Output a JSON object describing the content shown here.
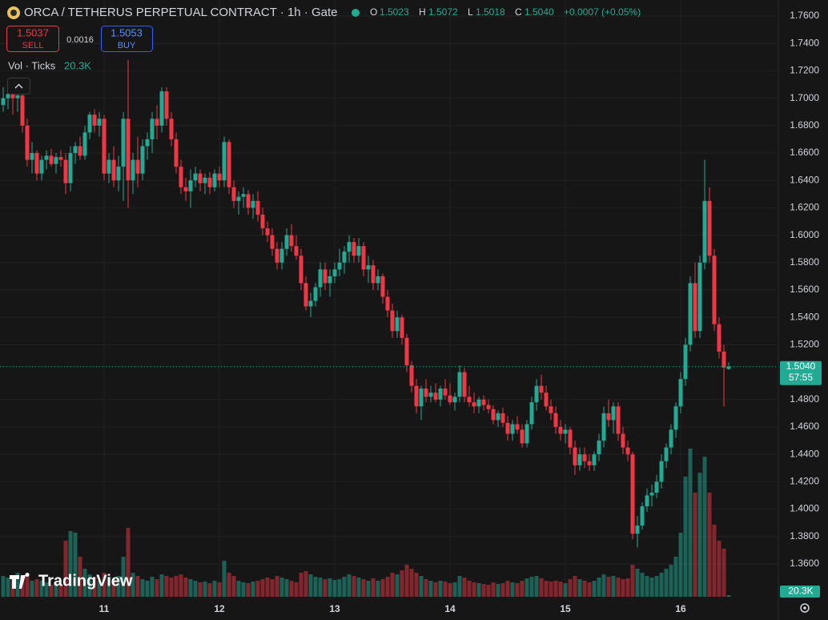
{
  "chart_data": {
    "type": "candlestick",
    "header": {
      "title": "ORCA / TETHERUS PERPETUAL CONTRACT · 1h · Gate",
      "o": "O",
      "o_value": "1.5023",
      "h": "H",
      "h_value": "1.5072",
      "l": "L",
      "l_value": "1.5018",
      "c": "C",
      "c_value": "1.5040",
      "change": "+0.0007 (+0.05%)"
    },
    "trade": {
      "sell_price": "1.5037",
      "sell": "SELL",
      "spread": "0.0016",
      "buy_price": "1.5053",
      "buy": "BUY"
    },
    "volume_title": "Vol · Ticks",
    "volume_label": "20.3K",
    "last_price_label": "1.5040",
    "countdown": "57:55",
    "watermark": "TradingView",
    "up_color": "#22ab94",
    "down_color": "#f23645",
    "ylim": [
      1.336,
      1.76
    ],
    "yticks": [
      {
        "value": 1.76,
        "label": "1.7600"
      },
      {
        "value": 1.74,
        "label": "1.7400"
      },
      {
        "value": 1.72,
        "label": "1.7200"
      },
      {
        "value": 1.7,
        "label": "1.7000"
      },
      {
        "value": 1.68,
        "label": "1.6800"
      },
      {
        "value": 1.66,
        "label": "1.6600"
      },
      {
        "value": 1.64,
        "label": "1.6400"
      },
      {
        "value": 1.62,
        "label": "1.6200"
      },
      {
        "value": 1.6,
        "label": "1.6000"
      },
      {
        "value": 1.58,
        "label": "1.5800"
      },
      {
        "value": 1.56,
        "label": "1.5600"
      },
      {
        "value": 1.54,
        "label": "1.5400"
      },
      {
        "value": 1.52,
        "label": "1.5200"
      },
      {
        "value": 1.48,
        "label": "1.4800"
      },
      {
        "value": 1.46,
        "label": "1.4600"
      },
      {
        "value": 1.44,
        "label": "1.4400"
      },
      {
        "value": 1.42,
        "label": "1.4200"
      },
      {
        "value": 1.4,
        "label": "1.4000"
      },
      {
        "value": 1.38,
        "label": "1.3800"
      },
      {
        "value": 1.36,
        "label": "1.3600"
      }
    ],
    "xticks": [
      {
        "value": 21,
        "label": "11"
      },
      {
        "value": 45,
        "label": "12"
      },
      {
        "value": 69,
        "label": "13"
      },
      {
        "value": 93,
        "label": "14"
      },
      {
        "value": 117,
        "label": "15"
      },
      {
        "value": 141,
        "label": "16"
      }
    ],
    "vlim": [
      0,
      2000
    ],
    "candles": [
      [
        1.695,
        1.708,
        1.69,
        1.7,
        260
      ],
      [
        1.7,
        1.706,
        1.692,
        1.703,
        240
      ],
      [
        1.703,
        1.705,
        1.688,
        1.7,
        220
      ],
      [
        1.7,
        1.705,
        1.69,
        1.702,
        300
      ],
      [
        1.702,
        1.704,
        1.675,
        1.68,
        250
      ],
      [
        1.68,
        1.685,
        1.65,
        1.655,
        280
      ],
      [
        1.655,
        1.668,
        1.645,
        1.66,
        200
      ],
      [
        1.66,
        1.662,
        1.64,
        1.645,
        220
      ],
      [
        1.645,
        1.658,
        1.64,
        1.655,
        200
      ],
      [
        1.655,
        1.662,
        1.648,
        1.658,
        180
      ],
      [
        1.658,
        1.663,
        1.65,
        1.652,
        150
      ],
      [
        1.652,
        1.66,
        1.645,
        1.657,
        170
      ],
      [
        1.657,
        1.662,
        1.65,
        1.655,
        160
      ],
      [
        1.655,
        1.66,
        1.63,
        1.638,
        700
      ],
      [
        1.638,
        1.665,
        1.632,
        1.66,
        820
      ],
      [
        1.66,
        1.668,
        1.652,
        1.665,
        800
      ],
      [
        1.665,
        1.672,
        1.655,
        1.658,
        500
      ],
      [
        1.658,
        1.68,
        1.655,
        1.675,
        350
      ],
      [
        1.675,
        1.69,
        1.67,
        1.688,
        280
      ],
      [
        1.688,
        1.692,
        1.675,
        1.68,
        250
      ],
      [
        1.68,
        1.69,
        1.672,
        1.685,
        200
      ],
      [
        1.685,
        1.688,
        1.64,
        1.645,
        300
      ],
      [
        1.645,
        1.66,
        1.638,
        1.655,
        250
      ],
      [
        1.655,
        1.665,
        1.635,
        1.64,
        220
      ],
      [
        1.64,
        1.658,
        1.632,
        1.65,
        260
      ],
      [
        1.65,
        1.69,
        1.625,
        1.685,
        500
      ],
      [
        1.685,
        1.728,
        1.62,
        1.64,
        860
      ],
      [
        1.64,
        1.66,
        1.63,
        1.655,
        300
      ],
      [
        1.655,
        1.672,
        1.635,
        1.645,
        260
      ],
      [
        1.645,
        1.67,
        1.64,
        1.665,
        220
      ],
      [
        1.665,
        1.675,
        1.655,
        1.67,
        200
      ],
      [
        1.67,
        1.69,
        1.66,
        1.685,
        250
      ],
      [
        1.685,
        1.695,
        1.67,
        1.68,
        220
      ],
      [
        1.68,
        1.708,
        1.675,
        1.705,
        280
      ],
      [
        1.705,
        1.708,
        1.68,
        1.685,
        260
      ],
      [
        1.685,
        1.69,
        1.665,
        1.67,
        240
      ],
      [
        1.67,
        1.675,
        1.645,
        1.65,
        260
      ],
      [
        1.65,
        1.655,
        1.63,
        1.635,
        280
      ],
      [
        1.635,
        1.642,
        1.625,
        1.632,
        240
      ],
      [
        1.632,
        1.648,
        1.62,
        1.64,
        220
      ],
      [
        1.64,
        1.65,
        1.635,
        1.645,
        200
      ],
      [
        1.645,
        1.648,
        1.632,
        1.638,
        180
      ],
      [
        1.638,
        1.645,
        1.63,
        1.642,
        190
      ],
      [
        1.642,
        1.646,
        1.63,
        1.635,
        170
      ],
      [
        1.635,
        1.648,
        1.632,
        1.645,
        200
      ],
      [
        1.645,
        1.65,
        1.635,
        1.64,
        180
      ],
      [
        1.64,
        1.672,
        1.635,
        1.668,
        450
      ],
      [
        1.668,
        1.67,
        1.63,
        1.635,
        300
      ],
      [
        1.635,
        1.64,
        1.62,
        1.625,
        260
      ],
      [
        1.625,
        1.632,
        1.615,
        1.628,
        200
      ],
      [
        1.628,
        1.635,
        1.62,
        1.63,
        180
      ],
      [
        1.63,
        1.633,
        1.615,
        1.62,
        170
      ],
      [
        1.62,
        1.63,
        1.612,
        1.625,
        190
      ],
      [
        1.625,
        1.632,
        1.61,
        1.615,
        200
      ],
      [
        1.615,
        1.62,
        1.6,
        1.605,
        220
      ],
      [
        1.605,
        1.61,
        1.595,
        1.6,
        240
      ],
      [
        1.6,
        1.605,
        1.585,
        1.59,
        220
      ],
      [
        1.59,
        1.595,
        1.575,
        1.58,
        260
      ],
      [
        1.58,
        1.595,
        1.575,
        1.59,
        240
      ],
      [
        1.59,
        1.605,
        1.585,
        1.6,
        220
      ],
      [
        1.6,
        1.608,
        1.588,
        1.592,
        200
      ],
      [
        1.592,
        1.6,
        1.582,
        1.585,
        180
      ],
      [
        1.585,
        1.59,
        1.56,
        1.565,
        300
      ],
      [
        1.565,
        1.57,
        1.545,
        1.548,
        320
      ],
      [
        1.548,
        1.558,
        1.54,
        1.552,
        280
      ],
      [
        1.552,
        1.565,
        1.548,
        1.562,
        250
      ],
      [
        1.562,
        1.58,
        1.555,
        1.575,
        240
      ],
      [
        1.575,
        1.58,
        1.56,
        1.565,
        220
      ],
      [
        1.565,
        1.575,
        1.555,
        1.57,
        230
      ],
      [
        1.57,
        1.58,
        1.565,
        1.575,
        210
      ],
      [
        1.575,
        1.59,
        1.57,
        1.58,
        220
      ],
      [
        1.58,
        1.592,
        1.572,
        1.588,
        250
      ],
      [
        1.588,
        1.6,
        1.58,
        1.595,
        280
      ],
      [
        1.595,
        1.598,
        1.58,
        1.585,
        260
      ],
      [
        1.585,
        1.598,
        1.58,
        1.592,
        240
      ],
      [
        1.592,
        1.595,
        1.57,
        1.575,
        220
      ],
      [
        1.575,
        1.585,
        1.565,
        1.578,
        200
      ],
      [
        1.578,
        1.582,
        1.56,
        1.565,
        230
      ],
      [
        1.565,
        1.575,
        1.56,
        1.57,
        200
      ],
      [
        1.57,
        1.572,
        1.55,
        1.555,
        220
      ],
      [
        1.555,
        1.56,
        1.54,
        1.545,
        250
      ],
      [
        1.545,
        1.55,
        1.525,
        1.53,
        300
      ],
      [
        1.53,
        1.545,
        1.525,
        1.54,
        280
      ],
      [
        1.54,
        1.542,
        1.52,
        1.525,
        330
      ],
      [
        1.525,
        1.528,
        1.5,
        1.505,
        400
      ],
      [
        1.505,
        1.508,
        1.485,
        1.49,
        350
      ],
      [
        1.49,
        1.495,
        1.47,
        1.475,
        300
      ],
      [
        1.475,
        1.49,
        1.465,
        1.488,
        260
      ],
      [
        1.488,
        1.495,
        1.478,
        1.482,
        220
      ],
      [
        1.482,
        1.49,
        1.478,
        1.485,
        200
      ],
      [
        1.485,
        1.492,
        1.478,
        1.48,
        180
      ],
      [
        1.48,
        1.49,
        1.475,
        1.488,
        200
      ],
      [
        1.488,
        1.495,
        1.48,
        1.483,
        190
      ],
      [
        1.483,
        1.492,
        1.476,
        1.478,
        170
      ],
      [
        1.478,
        1.485,
        1.472,
        1.482,
        180
      ],
      [
        1.482,
        1.505,
        1.478,
        1.5,
        260
      ],
      [
        1.5,
        1.503,
        1.478,
        1.482,
        240
      ],
      [
        1.482,
        1.49,
        1.475,
        1.478,
        200
      ],
      [
        1.478,
        1.485,
        1.47,
        1.475,
        180
      ],
      [
        1.475,
        1.482,
        1.47,
        1.48,
        170
      ],
      [
        1.48,
        1.483,
        1.472,
        1.476,
        160
      ],
      [
        1.476,
        1.48,
        1.47,
        1.473,
        150
      ],
      [
        1.473,
        1.476,
        1.462,
        1.465,
        180
      ],
      [
        1.465,
        1.472,
        1.46,
        1.47,
        160
      ],
      [
        1.47,
        1.474,
        1.46,
        1.463,
        170
      ],
      [
        1.463,
        1.468,
        1.45,
        1.455,
        200
      ],
      [
        1.455,
        1.465,
        1.45,
        1.462,
        180
      ],
      [
        1.462,
        1.468,
        1.455,
        1.458,
        170
      ],
      [
        1.458,
        1.462,
        1.445,
        1.448,
        200
      ],
      [
        1.448,
        1.465,
        1.445,
        1.462,
        230
      ],
      [
        1.462,
        1.482,
        1.458,
        1.478,
        250
      ],
      [
        1.478,
        1.495,
        1.472,
        1.49,
        260
      ],
      [
        1.49,
        1.498,
        1.48,
        1.485,
        230
      ],
      [
        1.485,
        1.49,
        1.472,
        1.475,
        200
      ],
      [
        1.475,
        1.48,
        1.465,
        1.47,
        190
      ],
      [
        1.47,
        1.475,
        1.455,
        1.46,
        200
      ],
      [
        1.46,
        1.465,
        1.45,
        1.455,
        190
      ],
      [
        1.455,
        1.462,
        1.448,
        1.458,
        170
      ],
      [
        1.458,
        1.46,
        1.44,
        1.445,
        220
      ],
      [
        1.445,
        1.45,
        1.425,
        1.432,
        260
      ],
      [
        1.432,
        1.445,
        1.428,
        1.44,
        220
      ],
      [
        1.44,
        1.445,
        1.43,
        1.435,
        200
      ],
      [
        1.435,
        1.44,
        1.428,
        1.432,
        180
      ],
      [
        1.432,
        1.442,
        1.428,
        1.44,
        200
      ],
      [
        1.44,
        1.455,
        1.435,
        1.45,
        240
      ],
      [
        1.45,
        1.475,
        1.445,
        1.47,
        280
      ],
      [
        1.47,
        1.48,
        1.46,
        1.465,
        250
      ],
      [
        1.465,
        1.478,
        1.455,
        1.475,
        260
      ],
      [
        1.475,
        1.478,
        1.45,
        1.455,
        240
      ],
      [
        1.455,
        1.46,
        1.44,
        1.445,
        220
      ],
      [
        1.445,
        1.45,
        1.435,
        1.44,
        230
      ],
      [
        1.44,
        1.442,
        1.378,
        1.382,
        400
      ],
      [
        1.382,
        1.395,
        1.372,
        1.388,
        350
      ],
      [
        1.388,
        1.405,
        1.385,
        1.402,
        300
      ],
      [
        1.402,
        1.415,
        1.398,
        1.41,
        260
      ],
      [
        1.41,
        1.418,
        1.402,
        1.412,
        240
      ],
      [
        1.412,
        1.425,
        1.408,
        1.42,
        260
      ],
      [
        1.42,
        1.44,
        1.415,
        1.435,
        300
      ],
      [
        1.435,
        1.448,
        1.43,
        1.445,
        350
      ],
      [
        1.445,
        1.462,
        1.44,
        1.458,
        400
      ],
      [
        1.458,
        1.478,
        1.452,
        1.475,
        500
      ],
      [
        1.475,
        1.5,
        1.47,
        1.495,
        800
      ],
      [
        1.495,
        1.525,
        1.49,
        1.52,
        1500
      ],
      [
        1.52,
        1.57,
        1.515,
        1.565,
        1850
      ],
      [
        1.565,
        1.58,
        1.525,
        1.53,
        1300
      ],
      [
        1.53,
        1.585,
        1.525,
        1.58,
        1550
      ],
      [
        1.58,
        1.655,
        1.575,
        1.625,
        1750
      ],
      [
        1.625,
        1.635,
        1.58,
        1.585,
        1300
      ],
      [
        1.585,
        1.59,
        1.53,
        1.535,
        900
      ],
      [
        1.535,
        1.54,
        1.51,
        1.515,
        700
      ],
      [
        1.515,
        1.52,
        1.475,
        1.5033,
        600
      ],
      [
        1.5023,
        1.5072,
        1.5018,
        1.504,
        20.3
      ]
    ]
  }
}
